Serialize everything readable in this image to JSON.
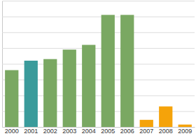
{
  "chart_data": {
    "type": "bar",
    "categories": [
      "2000",
      "2001",
      "2002",
      "2003",
      "2004",
      "2005",
      "2006",
      "2007",
      "2008",
      "2009"
    ],
    "values": [
      3.6,
      4.2,
      4.3,
      4.9,
      5.2,
      7.1,
      7.1,
      0.45,
      1.3,
      0.15
    ],
    "colors": [
      "#7aa862",
      "#3a9b9b",
      "#7aa862",
      "#7aa862",
      "#7aa862",
      "#7aa862",
      "#7aa862",
      "#f5a30a",
      "#f5a30a",
      "#f5a30a"
    ],
    "ylim": [
      0,
      8
    ],
    "yticks": [
      0,
      1,
      2,
      3,
      4,
      5,
      6,
      7,
      8
    ],
    "grid": true,
    "tick_labels": "x"
  }
}
